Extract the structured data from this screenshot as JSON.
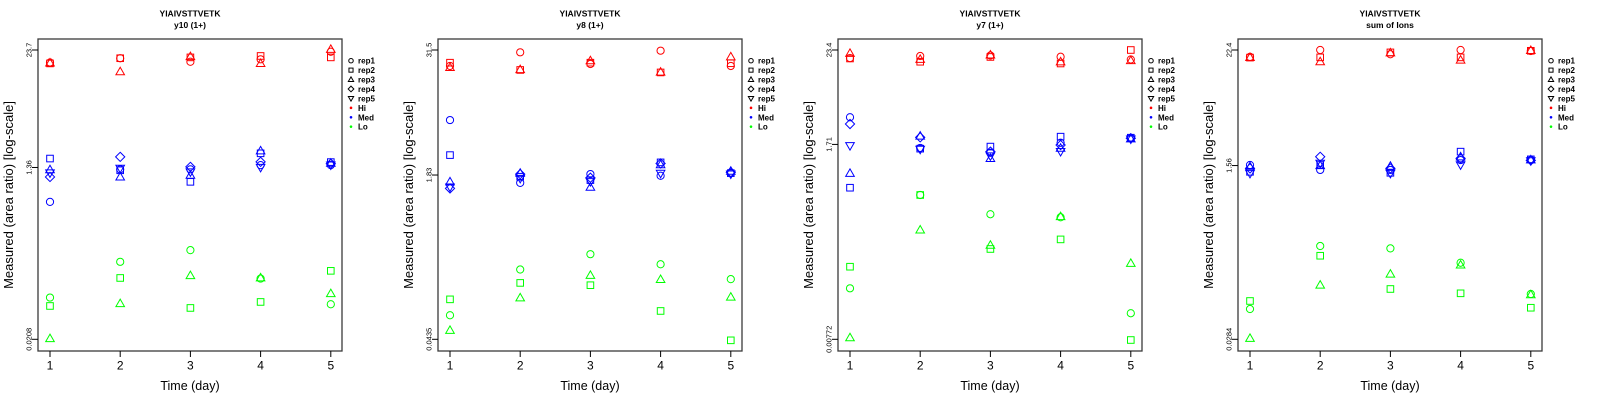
{
  "chart_data": [
    {
      "type": "scatter",
      "title": "YIAIVSTTVETK",
      "subtitle": "y10 (1+)",
      "xlabel": "Time (day)",
      "ylabel": "Measured (area ratio) [log-scale]",
      "yscale": "log",
      "x": [
        1,
        2,
        3,
        4,
        5
      ],
      "yticks": [
        0.0208,
        1.36,
        23.7
      ],
      "legend_position": "right",
      "legend": [
        {
          "label": "rep1",
          "marker": "circle"
        },
        {
          "label": "rep2",
          "marker": "square"
        },
        {
          "label": "rep3",
          "marker": "triangle"
        },
        {
          "label": "rep4",
          "marker": "diamond"
        },
        {
          "label": "rep5",
          "marker": "triangle-down"
        },
        {
          "label": "Hi",
          "color": "#ff0000"
        },
        {
          "label": "Med",
          "color": "#0000ff"
        },
        {
          "label": "Lo",
          "color": "#00ff00"
        }
      ],
      "series": [
        {
          "name": "Hi",
          "color": "#ff0000",
          "reps": [
            {
              "rep": "rep1",
              "values": [
                17.5,
                19.4,
                17.8,
                18.9,
                22.7
              ]
            },
            {
              "rep": "rep2",
              "values": [
                17.1,
                19.4,
                19.8,
                20.5,
                19.8
              ]
            },
            {
              "rep": "rep3",
              "values": [
                17.3,
                14.0,
                20.2,
                17.1,
                24.1
              ]
            }
          ]
        },
        {
          "name": "Med",
          "color": "#0000ff",
          "reps": [
            {
              "rep": "rep1",
              "values": [
                0.589,
                1.3,
                1.3,
                1.44,
                1.44
              ]
            },
            {
              "rep": "rep2",
              "values": [
                1.69,
                1.27,
                0.959,
                1.92,
                1.55
              ]
            },
            {
              "rep": "rep3",
              "values": [
                1.29,
                1.08,
                1.13,
                2.04,
                1.51
              ]
            },
            {
              "rep": "rep4",
              "values": [
                1.08,
                1.76,
                1.38,
                1.56,
                1.49
              ]
            },
            {
              "rep": "rep5",
              "values": [
                1.19,
                1.33,
                1.22,
                1.36,
                1.44
              ]
            }
          ]
        },
        {
          "name": "Lo",
          "color": "#00ff00",
          "reps": [
            {
              "rep": "rep1",
              "values": [
                0.0574,
                0.137,
                0.182,
                0.0912,
                0.0488
              ]
            },
            {
              "rep": "rep2",
              "values": [
                0.0468,
                0.0925,
                0.0446,
                0.0516,
                0.11
              ]
            },
            {
              "rep": "rep3",
              "values": [
                0.0212,
                0.0496,
                0.0981,
                0.093,
                0.0633
              ]
            }
          ]
        }
      ]
    },
    {
      "type": "scatter",
      "title": "YIAIVSTTVETK",
      "subtitle": "y8 (1+)",
      "xlabel": "Time (day)",
      "ylabel": "Measured (area ratio) [log-scale]",
      "yscale": "log",
      "x": [
        1,
        2,
        3,
        4,
        5
      ],
      "yticks": [
        0.0435,
        1.83,
        31.5
      ],
      "legend_position": "right",
      "legend": [
        {
          "label": "rep1",
          "marker": "circle"
        },
        {
          "label": "rep2",
          "marker": "square"
        },
        {
          "label": "rep3",
          "marker": "triangle"
        },
        {
          "label": "rep4",
          "marker": "diamond"
        },
        {
          "label": "rep5",
          "marker": "triangle-down"
        },
        {
          "label": "Hi",
          "color": "#ff0000"
        },
        {
          "label": "Med",
          "color": "#0000ff"
        },
        {
          "label": "Lo",
          "color": "#00ff00"
        }
      ],
      "series": [
        {
          "name": "Hi",
          "color": "#ff0000",
          "reps": [
            {
              "rep": "rep1",
              "values": [
                21.9,
                29.9,
                22.9,
                31.0,
                21.9
              ]
            },
            {
              "rep": "rep2",
              "values": [
                23.6,
                20.0,
                23.6,
                18.9,
                23.3
              ]
            },
            {
              "rep": "rep3",
              "values": [
                21.2,
                20.2,
                24.7,
                19.1,
                27.0
              ]
            }
          ]
        },
        {
          "name": "Med",
          "color": "#0000ff",
          "reps": [
            {
              "rep": "rep1",
              "values": [
                6.39,
                1.53,
                1.87,
                1.8,
                1.93
              ]
            },
            {
              "rep": "rep2",
              "values": [
                2.88,
                1.76,
                1.63,
                2.44,
                1.91
              ]
            },
            {
              "rep": "rep3",
              "values": [
                1.57,
                1.91,
                1.39,
                2.32,
                2.0
              ]
            },
            {
              "rep": "rep4",
              "values": [
                1.35,
                1.87,
                1.72,
                2.38,
                1.95
              ]
            },
            {
              "rep": "rep5",
              "values": [
                1.39,
                1.69,
                1.57,
                1.9,
                1.87
              ]
            }
          ]
        },
        {
          "name": "Lo",
          "color": "#00ff00",
          "reps": [
            {
              "rep": "rep1",
              "values": [
                0.0752,
                0.213,
                0.302,
                0.24,
                0.171
              ]
            },
            {
              "rep": "rep2",
              "values": [
                0.108,
                0.157,
                0.149,
                0.0829,
                0.0425
              ]
            },
            {
              "rep": "rep3",
              "values": [
                0.0534,
                0.112,
                0.187,
                0.17,
                0.114
              ]
            }
          ]
        }
      ]
    },
    {
      "type": "scatter",
      "title": "YIAIVSTTVETK",
      "subtitle": "y7 (1+)",
      "xlabel": "Time (day)",
      "ylabel": "Measured (area ratio) [log-scale]",
      "yscale": "log",
      "x": [
        1,
        2,
        3,
        4,
        5
      ],
      "yticks": [
        0.00772,
        1.71,
        23.4
      ],
      "legend_position": "right",
      "legend": [
        {
          "label": "rep1",
          "marker": "circle"
        },
        {
          "label": "rep2",
          "marker": "square"
        },
        {
          "label": "rep3",
          "marker": "triangle"
        },
        {
          "label": "rep4",
          "marker": "diamond"
        },
        {
          "label": "rep5",
          "marker": "triangle-down"
        },
        {
          "label": "Hi",
          "color": "#ff0000"
        },
        {
          "label": "Med",
          "color": "#0000ff"
        },
        {
          "label": "Lo",
          "color": "#00ff00"
        }
      ],
      "series": [
        {
          "name": "Hi",
          "color": "#ff0000",
          "reps": [
            {
              "rep": "rep1",
              "values": [
                18.7,
                19.8,
                20.1,
                19.4,
                18.0
              ]
            },
            {
              "rep": "rep2",
              "values": [
                18.5,
                16.9,
                19.3,
                16.1,
                23.4
              ]
            },
            {
              "rep": "rep3",
              "values": [
                21.4,
                18.1,
                20.4,
                16.9,
                17.5
              ]
            }
          ]
        },
        {
          "name": "Med",
          "color": "#0000ff",
          "reps": [
            {
              "rep": "rep1",
              "values": [
                3.63,
                1.55,
                1.36,
                1.79,
                2.03
              ]
            },
            {
              "rep": "rep2",
              "values": [
                0.515,
                1.52,
                1.61,
                2.12,
                2.06
              ]
            },
            {
              "rep": "rep3",
              "values": [
                0.768,
                2.16,
                1.16,
                1.54,
                2.0
              ]
            },
            {
              "rep": "rep4",
              "values": [
                3.01,
                2.08,
                1.4,
                1.68,
                2.03
              ]
            },
            {
              "rep": "rep5",
              "values": [
                1.65,
                1.49,
                1.24,
                1.4,
                1.98
              ]
            }
          ]
        },
        {
          "name": "Lo",
          "color": "#00ff00",
          "reps": [
            {
              "rep": "rep1",
              "values": [
                0.0317,
                0.421,
                0.247,
                0.227,
                0.0159
              ]
            },
            {
              "rep": "rep2",
              "values": [
                0.0577,
                0.421,
                0.0943,
                0.123,
                0.00757
              ]
            },
            {
              "rep": "rep3",
              "values": [
                0.00807,
                0.16,
                0.105,
                0.232,
                0.0634
              ]
            }
          ]
        }
      ]
    },
    {
      "type": "scatter",
      "title": "YIAIVSTTVETK",
      "subtitle": "sum of Ions",
      "xlabel": "Time (day)",
      "ylabel": "Measured (area ratio) [log-scale]",
      "yscale": "log",
      "x": [
        1,
        2,
        3,
        4,
        5
      ],
      "yticks": [
        0.0284,
        1.56,
        22.4
      ],
      "legend_position": "right",
      "legend": [
        {
          "label": "rep1",
          "marker": "circle"
        },
        {
          "label": "rep2",
          "marker": "square"
        },
        {
          "label": "rep3",
          "marker": "triangle"
        },
        {
          "label": "rep4",
          "marker": "diamond"
        },
        {
          "label": "rep5",
          "marker": "triangle-down"
        },
        {
          "label": "Hi",
          "color": "#ff0000"
        },
        {
          "label": "Med",
          "color": "#0000ff"
        },
        {
          "label": "Lo",
          "color": "#00ff00"
        }
      ],
      "series": [
        {
          "name": "Hi",
          "color": "#ff0000",
          "reps": [
            {
              "rep": "rep1",
              "values": [
                19.1,
                22.4,
                20.3,
                22.4,
                21.9
              ]
            },
            {
              "rep": "rep2",
              "values": [
                18.8,
                18.9,
                21.2,
                18.9,
                22.0
              ]
            },
            {
              "rep": "rep3",
              "values": [
                18.9,
                17.1,
                21.0,
                17.8,
                22.2
              ]
            }
          ]
        },
        {
          "name": "Med",
          "color": "#0000ff",
          "reps": [
            {
              "rep": "rep1",
              "values": [
                1.58,
                1.41,
                1.41,
                1.77,
                1.77
              ]
            },
            {
              "rep": "rep2",
              "values": [
                1.35,
                1.58,
                1.32,
                2.15,
                1.8
              ]
            },
            {
              "rep": "rep3",
              "values": [
                1.52,
                1.56,
                1.54,
                1.91,
                1.78
              ]
            },
            {
              "rep": "rep4",
              "values": [
                1.46,
                1.91,
                1.46,
                1.84,
                1.76
              ]
            },
            {
              "rep": "rep5",
              "values": [
                1.3,
                1.64,
                1.3,
                1.58,
                1.74
              ]
            }
          ]
        },
        {
          "name": "Lo",
          "color": "#00ff00",
          "reps": [
            {
              "rep": "rep1",
              "values": [
                0.0571,
                0.244,
                0.231,
                0.166,
                0.0807
              ]
            },
            {
              "rep": "rep2",
              "values": [
                0.0687,
                0.195,
                0.0906,
                0.082,
                0.0588
              ]
            },
            {
              "rep": "rep3",
              "values": [
                0.0291,
                0.0993,
                0.128,
                0.158,
                0.0795
              ]
            }
          ]
        }
      ]
    }
  ]
}
